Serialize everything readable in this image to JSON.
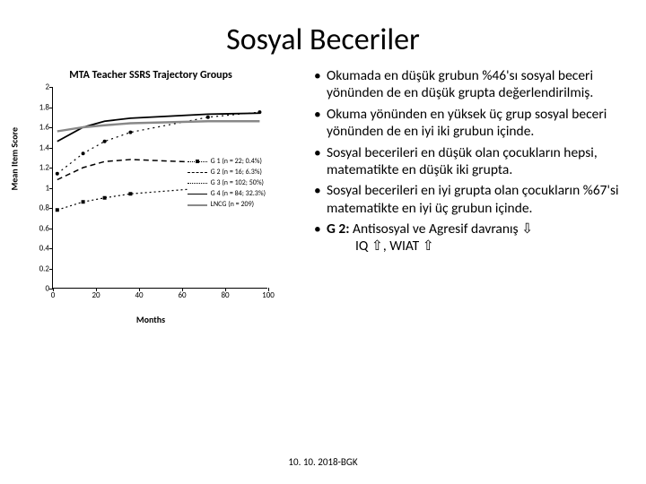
{
  "title": "Sosyal Beceriler",
  "footer": "10. 10. 2018-BGK",
  "bullets": [
    "Okumada en düşük grubun %46'sı sosyal beceri yönünden de en düşük grupta değerlendirilmiş.",
    "Okuma yönünden en yüksek üç grup sosyal beceri yönünden de en iyi iki grubun içinde.",
    "Sosyal becerileri en düşük olan çocukların hepsi, matematikte en düşük iki grupta.",
    "Sosyal becerileri en iyi grupta olan çocukların %67'si matematikte en iyi üç grubun içinde."
  ],
  "bullet5_strong": "G 2:",
  "bullet5_rest": " Antisosyal ve Agresif davranış ⇩",
  "bullet5_indent": "IQ ⇧, WIAT ⇧",
  "chart": {
    "title": "MTA Teacher SSRS Trajectory Groups",
    "xlabel": "Months",
    "ylabel": "Mean Item Score",
    "xlim": [
      0,
      100
    ],
    "ylim": [
      0,
      2
    ],
    "xticks": [
      0,
      20,
      40,
      60,
      80,
      100
    ],
    "yticks": [
      0,
      0.2,
      0.4,
      0.6,
      0.8,
      1,
      1.2,
      1.4,
      1.6,
      1.8,
      2
    ],
    "legend": [
      {
        "label": "G 1 (n = 22; 0.4%)",
        "color": "#000000",
        "style": "dotted-square"
      },
      {
        "label": "G 2 (n = 16; 6.3%)",
        "color": "#000000",
        "style": "dashed"
      },
      {
        "label": "G 3 (n = 102; 50%)",
        "color": "#000000",
        "style": "dotted"
      },
      {
        "label": "G 4 (n = 84; 32.3%)",
        "color": "#000000",
        "style": "solid"
      },
      {
        "label": "LNCG (n = 209)",
        "color": "#888888",
        "style": "solid-thick"
      }
    ],
    "series": {
      "g1": {
        "color": "#000",
        "dash": "2,3",
        "width": 1.2,
        "marker": "square",
        "pts": [
          [
            2,
            0.78
          ],
          [
            14,
            0.86
          ],
          [
            24,
            0.9
          ],
          [
            36,
            0.94
          ],
          [
            72,
            1.0
          ],
          [
            96,
            1.02
          ]
        ]
      },
      "g2": {
        "color": "#000",
        "dash": "6,4",
        "width": 1.5,
        "marker": "none",
        "pts": [
          [
            2,
            1.08
          ],
          [
            14,
            1.2
          ],
          [
            24,
            1.26
          ],
          [
            36,
            1.28
          ],
          [
            72,
            1.25
          ],
          [
            96,
            1.22
          ]
        ]
      },
      "g3": {
        "color": "#000",
        "dash": "2,4",
        "width": 1.2,
        "marker": "circle",
        "pts": [
          [
            2,
            1.14
          ],
          [
            14,
            1.34
          ],
          [
            24,
            1.46
          ],
          [
            36,
            1.55
          ],
          [
            72,
            1.7
          ],
          [
            96,
            1.75
          ]
        ]
      },
      "g4": {
        "color": "#000",
        "dash": "",
        "width": 1.8,
        "marker": "none",
        "pts": [
          [
            2,
            1.46
          ],
          [
            14,
            1.6
          ],
          [
            24,
            1.66
          ],
          [
            36,
            1.69
          ],
          [
            72,
            1.73
          ],
          [
            96,
            1.74
          ]
        ]
      },
      "lncg": {
        "color": "#888",
        "dash": "",
        "width": 2.4,
        "marker": "none",
        "pts": [
          [
            2,
            1.56
          ],
          [
            14,
            1.6
          ],
          [
            24,
            1.62
          ],
          [
            36,
            1.64
          ],
          [
            72,
            1.66
          ],
          [
            96,
            1.66
          ]
        ]
      }
    }
  }
}
